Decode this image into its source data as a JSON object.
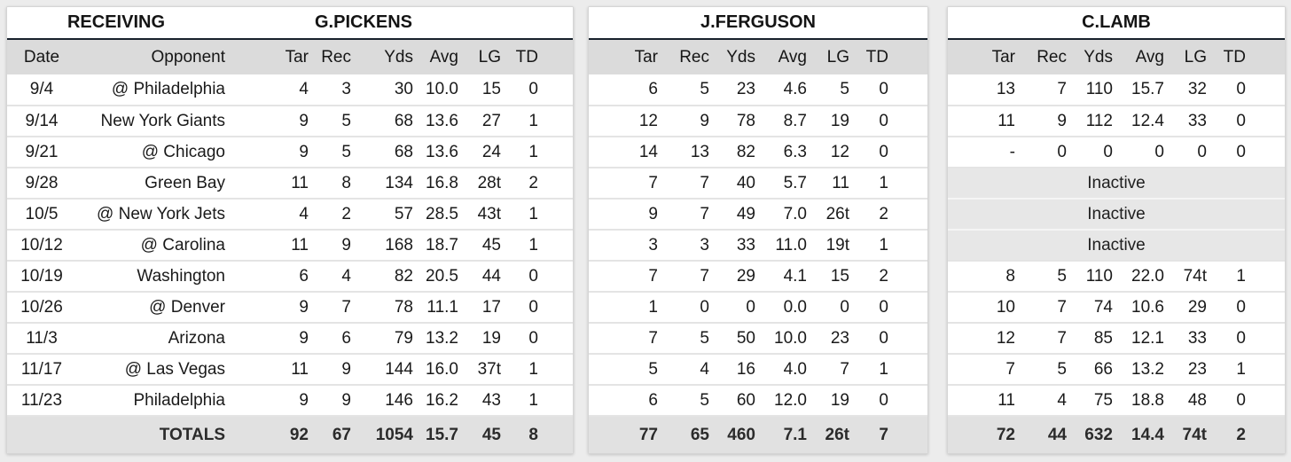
{
  "section_label": "RECEIVING",
  "totals_label": "TOTALS",
  "inactive_label": "Inactive",
  "columns_full": [
    "Date",
    "Opponent",
    "Tar",
    "Rec",
    "Yds",
    "Avg",
    "LG",
    "TD"
  ],
  "columns_stats": [
    "Tar",
    "Rec",
    "Yds",
    "Avg",
    "LG",
    "TD"
  ],
  "colors": {
    "page_bg": "#ececec",
    "panel_bg": "#ffffff",
    "header_row_bg": "#dbdbdb",
    "totals_row_bg": "#e1e1e1",
    "inactive_row_bg": "#e7e7e7",
    "title_underline": "#18222c",
    "row_divider": "#e4e4e4",
    "text": "#1a1a1a"
  },
  "players": [
    {
      "name": "G.PICKENS",
      "rows": [
        {
          "date": "9/4",
          "opponent": "@ Philadelphia",
          "stats": [
            "4",
            "3",
            "30",
            "10.0",
            "15",
            "0"
          ]
        },
        {
          "date": "9/14",
          "opponent": "New York Giants",
          "stats": [
            "9",
            "5",
            "68",
            "13.6",
            "27",
            "1"
          ]
        },
        {
          "date": "9/21",
          "opponent": "@ Chicago",
          "stats": [
            "9",
            "5",
            "68",
            "13.6",
            "24",
            "1"
          ]
        },
        {
          "date": "9/28",
          "opponent": "Green Bay",
          "stats": [
            "11",
            "8",
            "134",
            "16.8",
            "28t",
            "2"
          ]
        },
        {
          "date": "10/5",
          "opponent": "@ New York Jets",
          "stats": [
            "4",
            "2",
            "57",
            "28.5",
            "43t",
            "1"
          ]
        },
        {
          "date": "10/12",
          "opponent": "@ Carolina",
          "stats": [
            "11",
            "9",
            "168",
            "18.7",
            "45",
            "1"
          ]
        },
        {
          "date": "10/19",
          "opponent": "Washington",
          "stats": [
            "6",
            "4",
            "82",
            "20.5",
            "44",
            "0"
          ]
        },
        {
          "date": "10/26",
          "opponent": "@ Denver",
          "stats": [
            "9",
            "7",
            "78",
            "11.1",
            "17",
            "0"
          ]
        },
        {
          "date": "11/3",
          "opponent": "Arizona",
          "stats": [
            "9",
            "6",
            "79",
            "13.2",
            "19",
            "0"
          ]
        },
        {
          "date": "11/17",
          "opponent": "@ Las Vegas",
          "stats": [
            "11",
            "9",
            "144",
            "16.0",
            "37t",
            "1"
          ]
        },
        {
          "date": "11/23",
          "opponent": "Philadelphia",
          "stats": [
            "9",
            "9",
            "146",
            "16.2",
            "43",
            "1"
          ]
        }
      ],
      "totals": [
        "92",
        "67",
        "1054",
        "15.7",
        "45",
        "8"
      ]
    },
    {
      "name": "J.FERGUSON",
      "rows": [
        {
          "stats": [
            "6",
            "5",
            "23",
            "4.6",
            "5",
            "0"
          ]
        },
        {
          "stats": [
            "12",
            "9",
            "78",
            "8.7",
            "19",
            "0"
          ]
        },
        {
          "stats": [
            "14",
            "13",
            "82",
            "6.3",
            "12",
            "0"
          ]
        },
        {
          "stats": [
            "7",
            "7",
            "40",
            "5.7",
            "11",
            "1"
          ]
        },
        {
          "stats": [
            "9",
            "7",
            "49",
            "7.0",
            "26t",
            "2"
          ]
        },
        {
          "stats": [
            "3",
            "3",
            "33",
            "11.0",
            "19t",
            "1"
          ]
        },
        {
          "stats": [
            "7",
            "7",
            "29",
            "4.1",
            "15",
            "2"
          ]
        },
        {
          "stats": [
            "1",
            "0",
            "0",
            "0.0",
            "0",
            "0"
          ]
        },
        {
          "stats": [
            "7",
            "5",
            "50",
            "10.0",
            "23",
            "0"
          ]
        },
        {
          "stats": [
            "5",
            "4",
            "16",
            "4.0",
            "7",
            "1"
          ]
        },
        {
          "stats": [
            "6",
            "5",
            "60",
            "12.0",
            "19",
            "0"
          ]
        }
      ],
      "totals": [
        "77",
        "65",
        "460",
        "7.1",
        "26t",
        "7"
      ]
    },
    {
      "name": "C.LAMB",
      "rows": [
        {
          "stats": [
            "13",
            "7",
            "110",
            "15.7",
            "32",
            "0"
          ]
        },
        {
          "stats": [
            "11",
            "9",
            "112",
            "12.4",
            "33",
            "0"
          ]
        },
        {
          "stats": [
            "-",
            "0",
            "0",
            "0",
            "0",
            "0"
          ]
        },
        {
          "inactive": true
        },
        {
          "inactive": true
        },
        {
          "inactive": true
        },
        {
          "stats": [
            "8",
            "5",
            "110",
            "22.0",
            "74t",
            "1"
          ]
        },
        {
          "stats": [
            "10",
            "7",
            "74",
            "10.6",
            "29",
            "0"
          ]
        },
        {
          "stats": [
            "12",
            "7",
            "85",
            "12.1",
            "33",
            "0"
          ]
        },
        {
          "stats": [
            "7",
            "5",
            "66",
            "13.2",
            "23",
            "1"
          ]
        },
        {
          "stats": [
            "11",
            "4",
            "75",
            "18.8",
            "48",
            "0"
          ]
        }
      ],
      "totals": [
        "72",
        "44",
        "632",
        "14.4",
        "74t",
        "2"
      ]
    }
  ]
}
